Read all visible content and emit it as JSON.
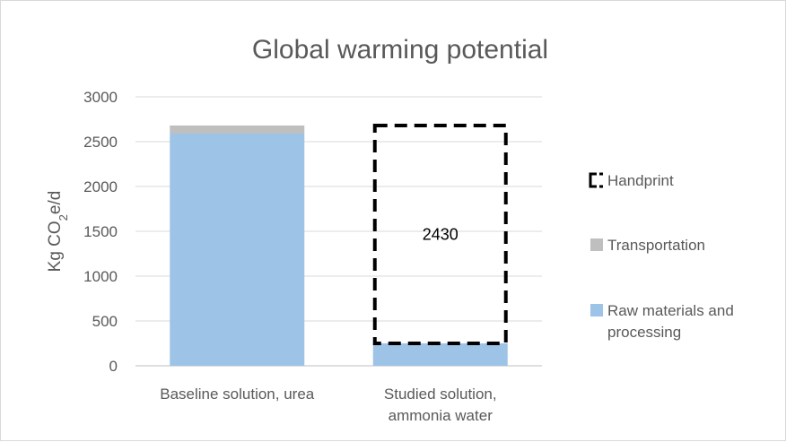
{
  "chart_data": {
    "type": "bar",
    "stacked": true,
    "title": "Global warming potential",
    "ylabel_main": "Kg CO",
    "ylabel_sub": "2",
    "ylabel_tail": "e/d",
    "ylim": [
      0,
      3000
    ],
    "yticks": [
      0,
      500,
      1000,
      1500,
      2000,
      2500,
      3000
    ],
    "grid": true,
    "legend_position": "right",
    "categories": [
      [
        "Baseline solution, urea"
      ],
      [
        "Studied solution,",
        "ammonia water"
      ]
    ],
    "series": [
      {
        "name": "Raw materials and processing",
        "name_lines": [
          "Raw materials and",
          "processing"
        ],
        "color": "#9dc3e6",
        "values": [
          2590,
          250
        ]
      },
      {
        "name": "Transportation",
        "color": "#bfbfbf",
        "values": [
          90,
          0
        ]
      },
      {
        "name": "Handprint",
        "color": "#000000",
        "style": "dashed-outline",
        "values": [
          0,
          2430
        ]
      }
    ],
    "annotations": [
      {
        "category_index": 1,
        "text": "2430"
      }
    ]
  }
}
